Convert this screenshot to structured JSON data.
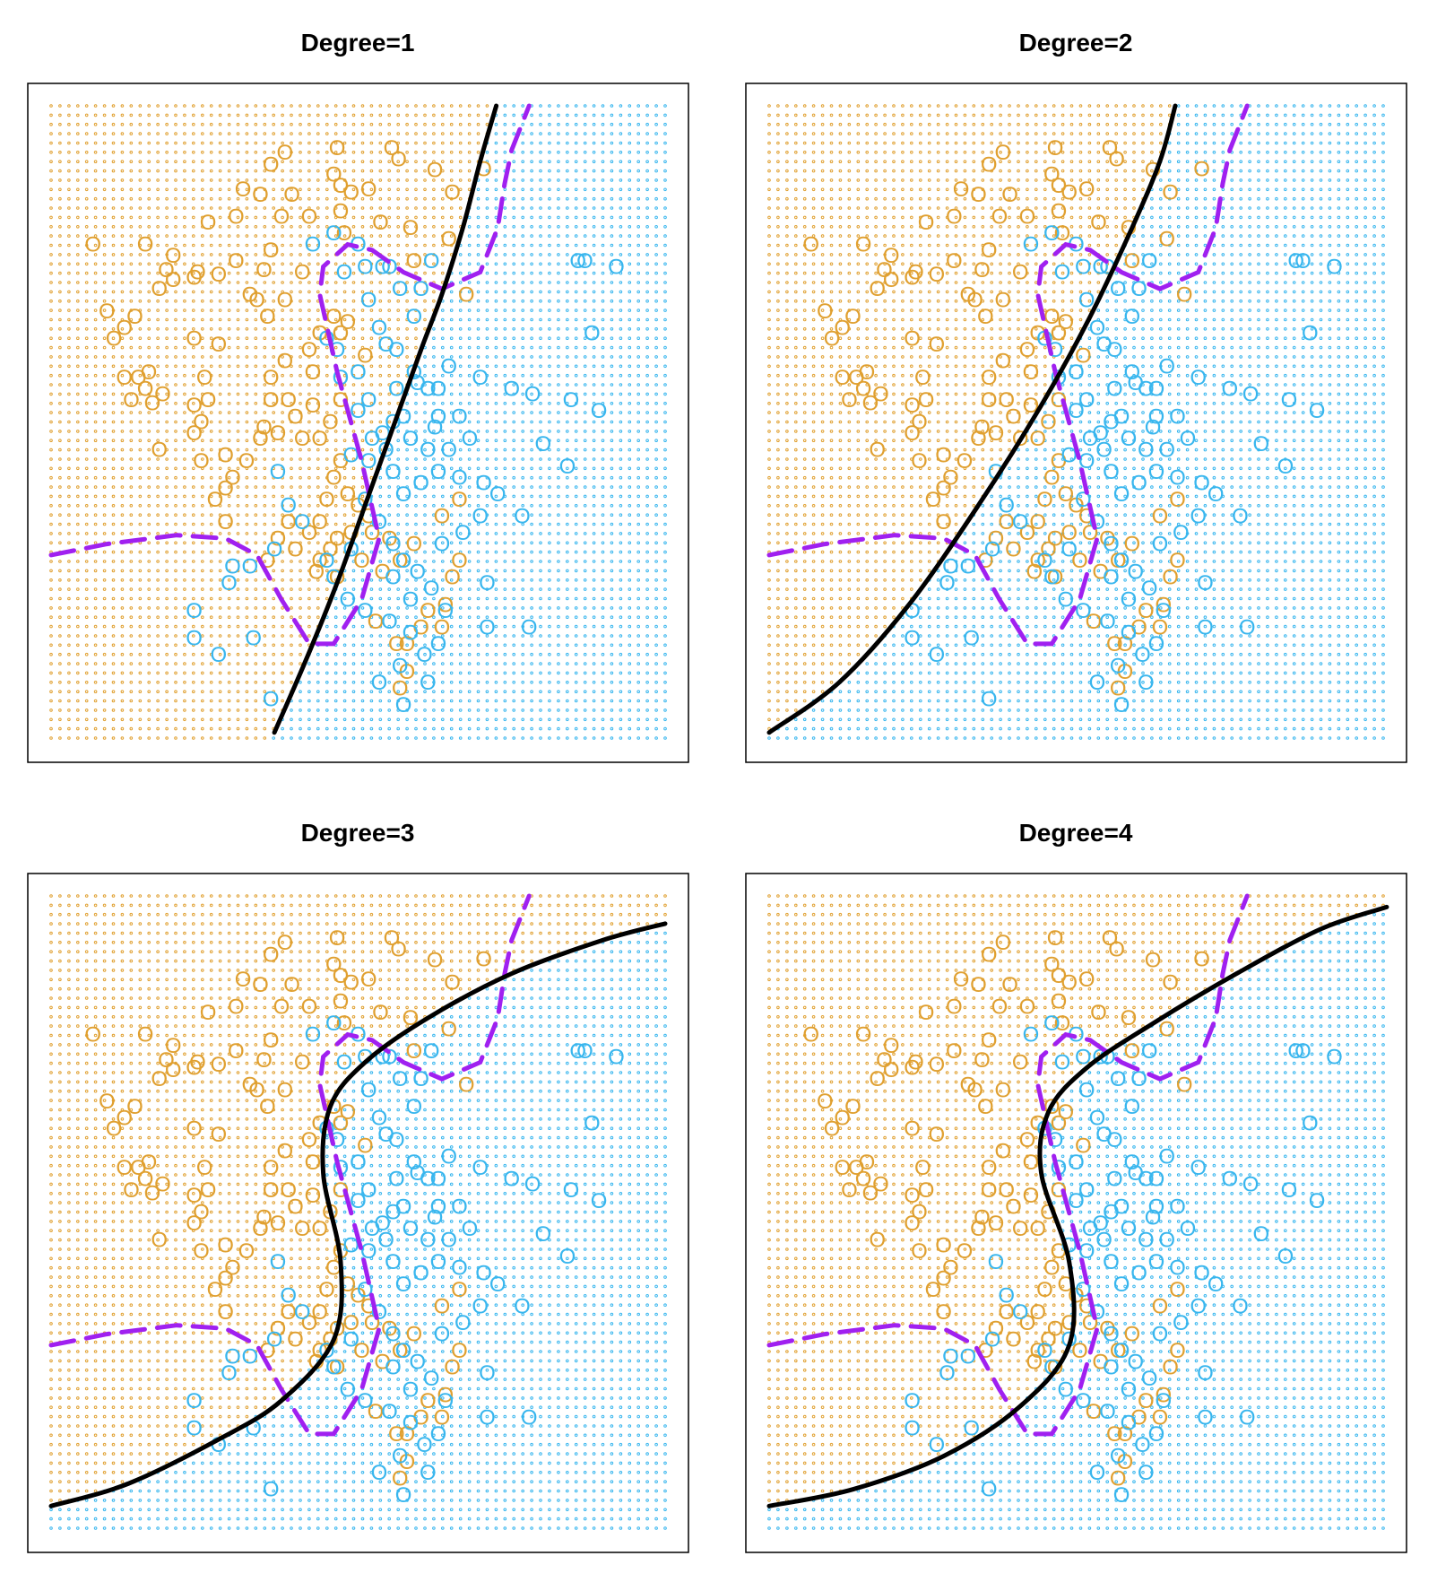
{
  "colors": {
    "class_a": "#E0A030",
    "class_b": "#38B6EE",
    "bayes_boundary": "#A020F0",
    "fitted_boundary": "#000000",
    "frame": "#000000"
  },
  "point_labels": {
    "class_a": "O",
    "class_b": "O"
  },
  "chart_data": [
    {
      "type": "scatter",
      "title": "Degree=1",
      "xlabel": "",
      "ylabel": "",
      "grid_background": true,
      "legend": "none",
      "fitted_boundary": [
        [
          -1.4,
          -2.65
        ],
        [
          -0.95,
          -2.0
        ],
        [
          -0.5,
          -1.3
        ],
        [
          -0.1,
          -0.6
        ],
        [
          0.3,
          0.1
        ],
        [
          0.7,
          0.8
        ],
        [
          1.0,
          1.3
        ],
        [
          1.3,
          1.9
        ],
        [
          1.55,
          2.5
        ],
        [
          1.78,
          3.0
        ]
      ]
    },
    {
      "type": "scatter",
      "title": "Degree=2",
      "xlabel": "",
      "ylabel": "",
      "grid_background": true,
      "legend": "none",
      "fitted_boundary": [
        [
          -4.6,
          -2.65
        ],
        [
          -3.6,
          -2.2
        ],
        [
          -2.6,
          -1.5
        ],
        [
          -1.6,
          -0.6
        ],
        [
          -0.7,
          0.3
        ],
        [
          0.0,
          1.1
        ],
        [
          0.6,
          1.9
        ],
        [
          1.0,
          2.5
        ],
        [
          1.22,
          3.0
        ]
      ]
    },
    {
      "type": "scatter",
      "title": "Degree=3",
      "xlabel": "",
      "ylabel": "",
      "grid_background": true,
      "legend": "none",
      "fitted_boundary": [
        [
          -4.6,
          -2.5
        ],
        [
          -3.5,
          -2.3
        ],
        [
          -2.2,
          -1.9
        ],
        [
          -1.3,
          -1.55
        ],
        [
          -0.55,
          -1.0
        ],
        [
          -0.45,
          -0.3
        ],
        [
          -0.7,
          0.5
        ],
        [
          -0.6,
          1.1
        ],
        [
          -0.1,
          1.5
        ],
        [
          0.8,
          1.9
        ],
        [
          2.0,
          2.3
        ],
        [
          3.3,
          2.6
        ],
        [
          4.2,
          2.75
        ]
      ]
    },
    {
      "type": "scatter",
      "title": "Degree=4",
      "xlabel": "",
      "ylabel": "",
      "grid_background": true,
      "legend": "none",
      "fitted_boundary": [
        [
          -4.6,
          -2.5
        ],
        [
          -3.4,
          -2.35
        ],
        [
          -2.1,
          -2.05
        ],
        [
          -1.0,
          -1.6
        ],
        [
          -0.3,
          -1.05
        ],
        [
          -0.3,
          -0.3
        ],
        [
          -0.7,
          0.5
        ],
        [
          -0.6,
          1.05
        ],
        [
          -0.05,
          1.45
        ],
        [
          0.9,
          1.85
        ],
        [
          2.1,
          2.3
        ],
        [
          3.3,
          2.7
        ],
        [
          4.25,
          2.9
        ]
      ]
    }
  ],
  "shared_axes": {
    "xlim": [
      -4.6,
      4.2
    ],
    "ylim": [
      -2.7,
      3.0
    ],
    "x_axis_shown": false,
    "y_axis_shown": false
  },
  "bayes_boundary": [
    [
      -4.6,
      -1.05
    ],
    [
      -3.8,
      -0.95
    ],
    [
      -2.8,
      -0.87
    ],
    [
      -2.1,
      -0.9
    ],
    [
      -1.65,
      -1.05
    ],
    [
      -1.3,
      -1.45
    ],
    [
      -0.9,
      -1.85
    ],
    [
      -0.55,
      -1.85
    ],
    [
      -0.15,
      -1.45
    ],
    [
      0.1,
      -0.9
    ],
    [
      -0.15,
      -0.2
    ],
    [
      -0.5,
      0.6
    ],
    [
      -0.75,
      1.3
    ],
    [
      -0.7,
      1.55
    ],
    [
      -0.35,
      1.75
    ],
    [
      0.0,
      1.7
    ],
    [
      0.45,
      1.5
    ],
    [
      1.0,
      1.35
    ],
    [
      1.55,
      1.5
    ],
    [
      1.8,
      1.9
    ],
    [
      1.9,
      2.3
    ],
    [
      2.0,
      2.6
    ],
    [
      2.25,
      3.0
    ]
  ],
  "observations_a": [
    [
      -1.25,
      2.58
    ],
    [
      -1.45,
      2.47
    ],
    [
      -0.5,
      2.62
    ],
    [
      -0.55,
      2.38
    ],
    [
      -0.45,
      2.28
    ],
    [
      0.28,
      2.62
    ],
    [
      0.38,
      2.52
    ],
    [
      0.9,
      2.42
    ],
    [
      1.15,
      2.22
    ],
    [
      1.6,
      2.43
    ],
    [
      -1.85,
      2.25
    ],
    [
      -1.6,
      2.2
    ],
    [
      -1.15,
      2.2
    ],
    [
      -0.3,
      2.22
    ],
    [
      -0.05,
      2.25
    ],
    [
      -0.45,
      2.05
    ],
    [
      -0.9,
      2.0
    ],
    [
      -1.95,
      2.0
    ],
    [
      -1.3,
      2.0
    ],
    [
      -0.4,
      1.85
    ],
    [
      0.12,
      1.95
    ],
    [
      0.55,
      1.9
    ],
    [
      1.1,
      1.8
    ],
    [
      0.6,
      1.6
    ],
    [
      -2.35,
      1.95
    ],
    [
      -1.45,
      1.7
    ],
    [
      -1.95,
      1.6
    ],
    [
      -2.5,
      1.5
    ],
    [
      -2.85,
      1.65
    ],
    [
      -4.0,
      1.75
    ],
    [
      -2.85,
      1.43
    ],
    [
      -2.55,
      1.45
    ],
    [
      -3.25,
      1.75
    ],
    [
      -3.05,
      1.35
    ],
    [
      -2.95,
      1.52
    ],
    [
      -1.55,
      1.52
    ],
    [
      -2.2,
      1.48
    ],
    [
      -1.65,
      1.25
    ],
    [
      -1.0,
      1.5
    ],
    [
      -1.25,
      1.25
    ],
    [
      -1.75,
      1.3
    ],
    [
      -0.55,
      1.1
    ],
    [
      -0.75,
      0.95
    ],
    [
      -1.5,
      1.1
    ],
    [
      -0.9,
      0.8
    ],
    [
      -0.35,
      1.05
    ],
    [
      1.35,
      1.3
    ],
    [
      -0.45,
      0.95
    ],
    [
      -3.8,
      1.15
    ],
    [
      -3.4,
      1.1
    ],
    [
      -3.55,
      1.0
    ],
    [
      -3.7,
      0.9
    ],
    [
      -2.55,
      0.9
    ],
    [
      -2.2,
      0.85
    ],
    [
      -1.45,
      0.55
    ],
    [
      -1.25,
      0.7
    ],
    [
      -0.85,
      0.6
    ],
    [
      -0.1,
      0.75
    ],
    [
      -1.45,
      0.35
    ],
    [
      -1.2,
      0.35
    ],
    [
      -1.55,
      0.1
    ],
    [
      -1.35,
      0.05
    ],
    [
      -1.1,
      0.2
    ],
    [
      -0.85,
      0.3
    ],
    [
      -0.45,
      0.35
    ],
    [
      -1.0,
      0.0
    ],
    [
      -0.6,
      0.15
    ],
    [
      -0.75,
      0.0
    ],
    [
      -2.4,
      0.55
    ],
    [
      -2.35,
      0.35
    ],
    [
      -2.55,
      0.3
    ],
    [
      -2.45,
      0.15
    ],
    [
      -3.35,
      0.55
    ],
    [
      -3.25,
      0.45
    ],
    [
      -3.0,
      0.4
    ],
    [
      -3.15,
      0.32
    ],
    [
      -3.45,
      0.35
    ],
    [
      -3.55,
      0.55
    ],
    [
      -3.2,
      0.6
    ],
    [
      -2.55,
      0.05
    ],
    [
      -2.45,
      -0.2
    ],
    [
      -2.1,
      -0.45
    ],
    [
      -2.25,
      -0.55
    ],
    [
      -2.1,
      -0.75
    ],
    [
      -2.0,
      -0.35
    ],
    [
      -2.1,
      -0.15
    ],
    [
      -1.8,
      -0.2
    ],
    [
      -1.6,
      0.0
    ],
    [
      -3.05,
      -0.1
    ],
    [
      -1.2,
      -0.75
    ],
    [
      -1.35,
      -0.9
    ],
    [
      -1.1,
      -1.0
    ],
    [
      -1.5,
      -1.1
    ],
    [
      -0.65,
      -0.55
    ],
    [
      -0.75,
      -0.75
    ],
    [
      -0.6,
      -1.0
    ],
    [
      -0.5,
      -0.9
    ],
    [
      -0.9,
      -0.85
    ],
    [
      -0.8,
      -1.2
    ],
    [
      -0.75,
      -1.1
    ],
    [
      -0.55,
      -0.35
    ],
    [
      -0.3,
      -0.85
    ],
    [
      0.0,
      -0.85
    ],
    [
      -0.15,
      -1.1
    ],
    [
      0.4,
      -1.1
    ],
    [
      1.0,
      -0.7
    ],
    [
      1.25,
      -0.55
    ],
    [
      0.8,
      -1.55
    ],
    [
      -0.5,
      -1.25
    ],
    [
      -0.35,
      -0.5
    ],
    [
      -0.45,
      -0.2
    ],
    [
      -0.05,
      -0.7
    ],
    [
      0.25,
      -0.9
    ],
    [
      0.6,
      -0.95
    ],
    [
      0.5,
      -1.85
    ],
    [
      0.05,
      -1.65
    ],
    [
      0.7,
      -1.7
    ],
    [
      1.05,
      -1.5
    ],
    [
      1.15,
      -1.25
    ],
    [
      1.25,
      -1.1
    ],
    [
      0.15,
      -1.2
    ],
    [
      -0.2,
      -0.6
    ],
    [
      0.5,
      -2.1
    ],
    [
      0.4,
      -2.25
    ],
    [
      1.0,
      -1.7
    ],
    [
      0.35,
      -1.85
    ]
  ],
  "observations_b": [
    [
      -0.55,
      1.85
    ],
    [
      -0.85,
      1.75
    ],
    [
      -0.1,
      1.55
    ],
    [
      0.15,
      1.55
    ],
    [
      0.25,
      1.55
    ],
    [
      0.85,
      1.6
    ],
    [
      0.4,
      1.35
    ],
    [
      0.7,
      1.35
    ],
    [
      -0.4,
      1.5
    ],
    [
      -0.2,
      1.75
    ],
    [
      -0.05,
      1.25
    ],
    [
      0.6,
      1.1
    ],
    [
      0.65,
      0.5
    ],
    [
      0.95,
      0.45
    ],
    [
      0.95,
      0.2
    ],
    [
      1.25,
      0.2
    ],
    [
      1.4,
      0.0
    ],
    [
      1.6,
      -0.4
    ],
    [
      1.8,
      -0.5
    ],
    [
      2.3,
      0.4
    ],
    [
      2.45,
      -0.05
    ],
    [
      2.95,
      1.6
    ],
    [
      3.05,
      1.6
    ],
    [
      3.15,
      0.95
    ],
    [
      3.5,
      1.55
    ],
    [
      2.8,
      -0.25
    ],
    [
      0.2,
      0.85
    ],
    [
      0.1,
      1.0
    ],
    [
      0.35,
      0.8
    ],
    [
      0.6,
      0.6
    ],
    [
      1.1,
      0.65
    ],
    [
      1.55,
      0.55
    ],
    [
      2.0,
      0.45
    ],
    [
      2.85,
      0.35
    ],
    [
      -0.2,
      0.25
    ],
    [
      -0.05,
      0.35
    ],
    [
      -0.45,
      0.55
    ],
    [
      -0.65,
      0.9
    ],
    [
      -0.5,
      0.8
    ],
    [
      0.35,
      0.45
    ],
    [
      0.8,
      0.45
    ],
    [
      0.9,
      0.1
    ],
    [
      1.1,
      -0.1
    ],
    [
      1.25,
      -0.35
    ],
    [
      1.55,
      -0.7
    ],
    [
      1.3,
      -0.85
    ],
    [
      1.0,
      -0.95
    ],
    [
      1.65,
      -1.3
    ],
    [
      2.15,
      -0.7
    ],
    [
      3.25,
      0.25
    ],
    [
      0.0,
      0.0
    ],
    [
      0.15,
      0.05
    ],
    [
      0.3,
      0.15
    ],
    [
      0.45,
      0.2
    ],
    [
      0.55,
      0.0
    ],
    [
      0.8,
      -0.1
    ],
    [
      0.95,
      -0.3
    ],
    [
      0.7,
      -0.4
    ],
    [
      0.45,
      -0.5
    ],
    [
      0.3,
      -0.3
    ],
    [
      0.2,
      -0.1
    ],
    [
      -0.05,
      -0.2
    ],
    [
      -0.3,
      -0.15
    ],
    [
      -0.1,
      -0.55
    ],
    [
      0.1,
      -0.75
    ],
    [
      0.3,
      -0.95
    ],
    [
      0.45,
      -1.1
    ],
    [
      0.65,
      -1.2
    ],
    [
      0.85,
      -1.35
    ],
    [
      1.05,
      -1.55
    ],
    [
      0.95,
      -1.85
    ],
    [
      0.75,
      -1.95
    ],
    [
      0.55,
      -1.75
    ],
    [
      0.25,
      -1.65
    ],
    [
      -0.1,
      -1.55
    ],
    [
      -0.35,
      -1.45
    ],
    [
      0.55,
      -1.45
    ],
    [
      1.65,
      -1.7
    ],
    [
      2.25,
      -1.7
    ],
    [
      -1.75,
      -1.15
    ],
    [
      -2.0,
      -1.15
    ],
    [
      -2.05,
      -1.3
    ],
    [
      -2.55,
      -1.55
    ],
    [
      -2.55,
      -1.8
    ],
    [
      -2.2,
      -1.95
    ],
    [
      -1.7,
      -1.8
    ],
    [
      -1.45,
      -2.35
    ],
    [
      -0.55,
      -1.25
    ],
    [
      0.3,
      -1.25
    ],
    [
      0.45,
      -2.4
    ],
    [
      -0.65,
      -1.1
    ],
    [
      -1.0,
      -0.75
    ],
    [
      -1.2,
      -0.6
    ],
    [
      0.4,
      -2.05
    ],
    [
      0.1,
      -2.2
    ],
    [
      0.8,
      -2.2
    ],
    [
      -1.35,
      -0.3
    ],
    [
      -1.4,
      -1.0
    ],
    [
      -0.3,
      -1.0
    ],
    [
      -0.2,
      0.6
    ]
  ]
}
